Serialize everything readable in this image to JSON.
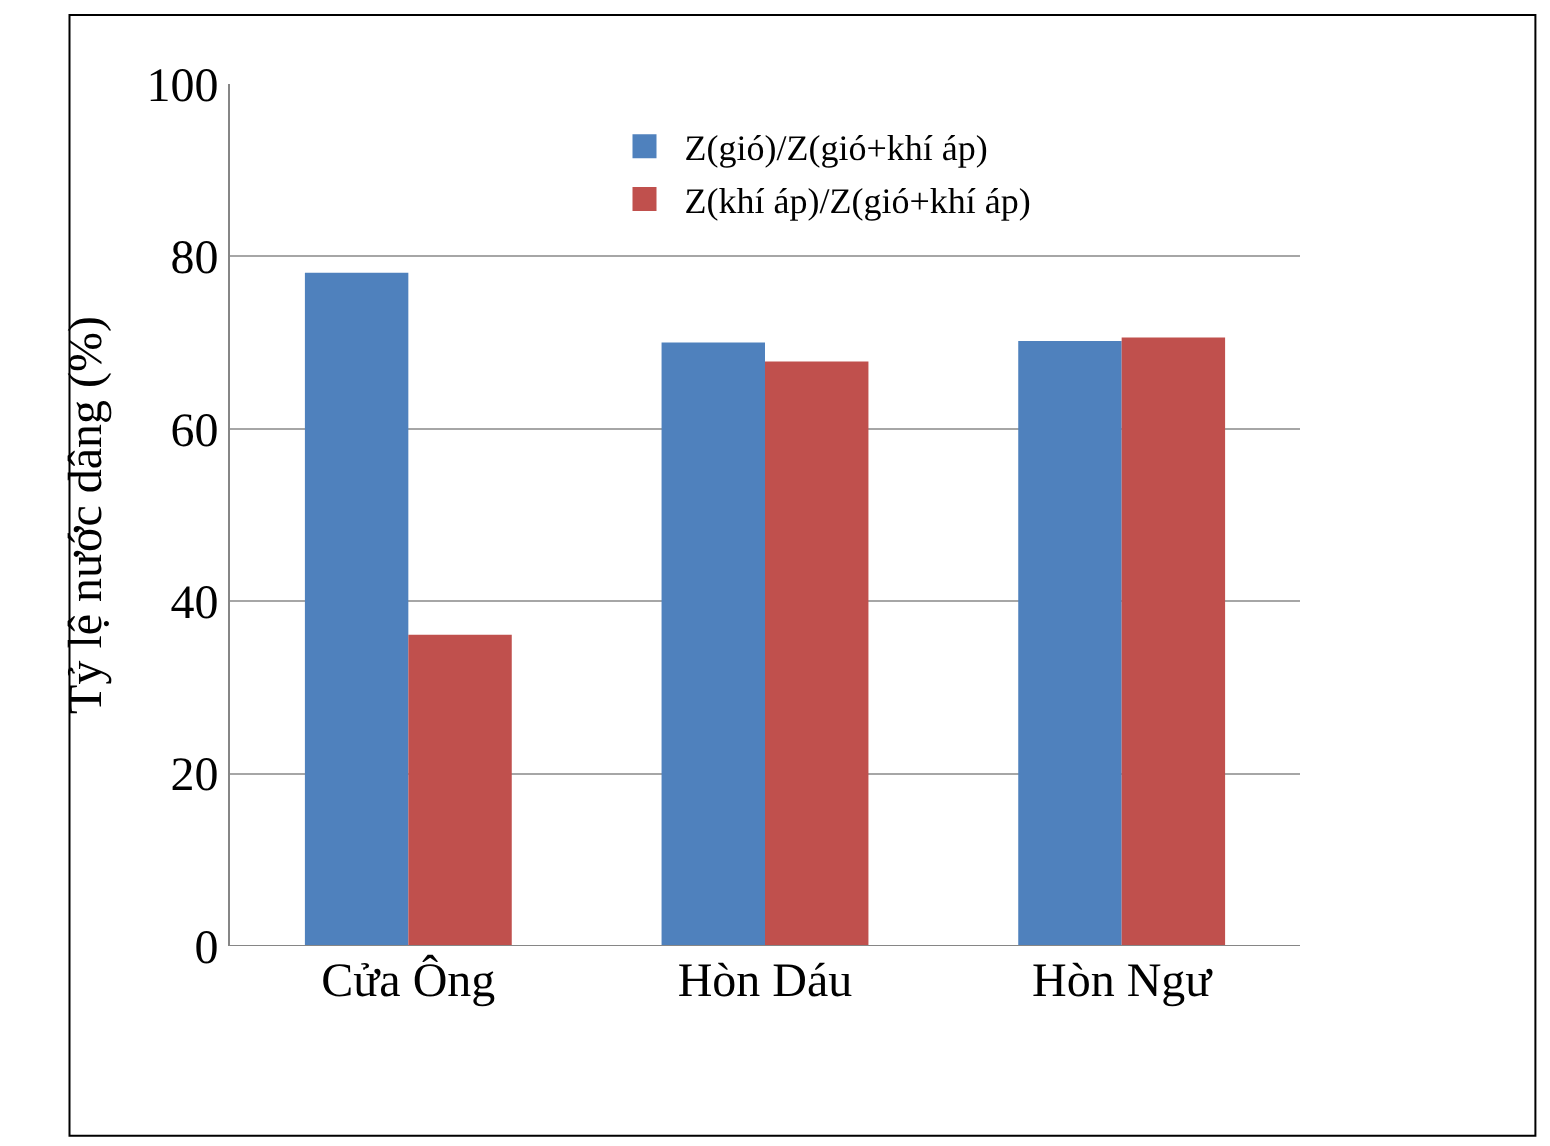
{
  "chart_data": {
    "type": "bar",
    "ylabel": "Tỷ lệ nước dâng (%)",
    "categories": [
      "Cửa Ông",
      "Hòn Dáu",
      "Hòn Ngư"
    ],
    "series": [
      {
        "name": "Z(gió)/Z(gió+khí áp)",
        "color": "#4f81bd",
        "values": [
          78.1,
          70.0,
          70.2
        ]
      },
      {
        "name": "Z(khí áp)/Z(gió+khí áp)",
        "color": "#c0504d",
        "values": [
          36.1,
          67.8,
          70.6
        ]
      }
    ],
    "ylim": [
      0,
      100
    ],
    "yticks": [
      0,
      20,
      40,
      60,
      80,
      100
    ],
    "grid": "y",
    "legend": "top right"
  }
}
